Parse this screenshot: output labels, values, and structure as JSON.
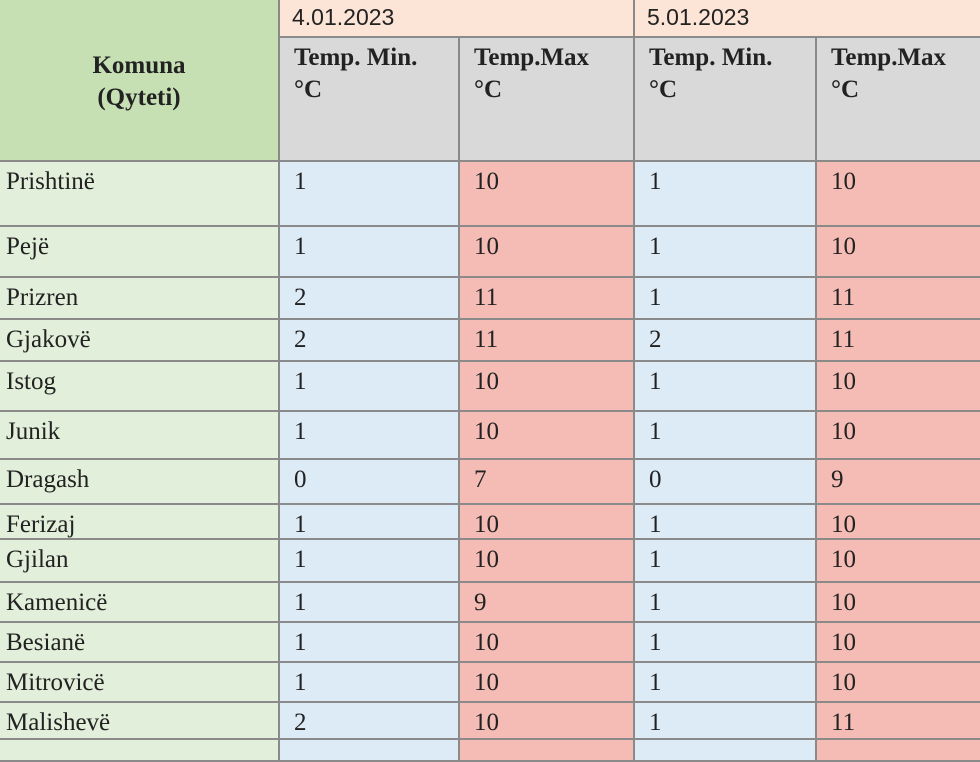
{
  "table": {
    "corner": [
      "Komuna",
      "(Qyteti)"
    ],
    "dates": [
      "4.01.2023",
      "5.01.2023"
    ],
    "columns": [
      [
        "Temp. Min.",
        "°C"
      ],
      [
        "Temp.Max",
        "°C"
      ],
      [
        "Temp. Min.",
        "°C"
      ],
      [
        "Temp.Max",
        "°C"
      ]
    ],
    "rows": [
      [
        "Prishtinë",
        1,
        10,
        1,
        10
      ],
      [
        "Pejë",
        1,
        10,
        1,
        10
      ],
      [
        "Prizren",
        2,
        11,
        1,
        11
      ],
      [
        "Gjakovë",
        2,
        11,
        2,
        11
      ],
      [
        "Istog",
        1,
        10,
        1,
        10
      ],
      [
        "Junik",
        1,
        10,
        1,
        10
      ],
      [
        "Dragash",
        0,
        7,
        0,
        9
      ],
      [
        "Ferizaj",
        1,
        10,
        1,
        10
      ],
      [
        "Gjilan",
        1,
        10,
        1,
        10
      ],
      [
        "Kamenicë",
        1,
        9,
        1,
        10
      ],
      [
        "Besianë",
        1,
        10,
        1,
        10
      ],
      [
        "Mitrovicë",
        1,
        10,
        1,
        10
      ],
      [
        "Malishevë",
        2,
        10,
        1,
        11
      ]
    ]
  }
}
